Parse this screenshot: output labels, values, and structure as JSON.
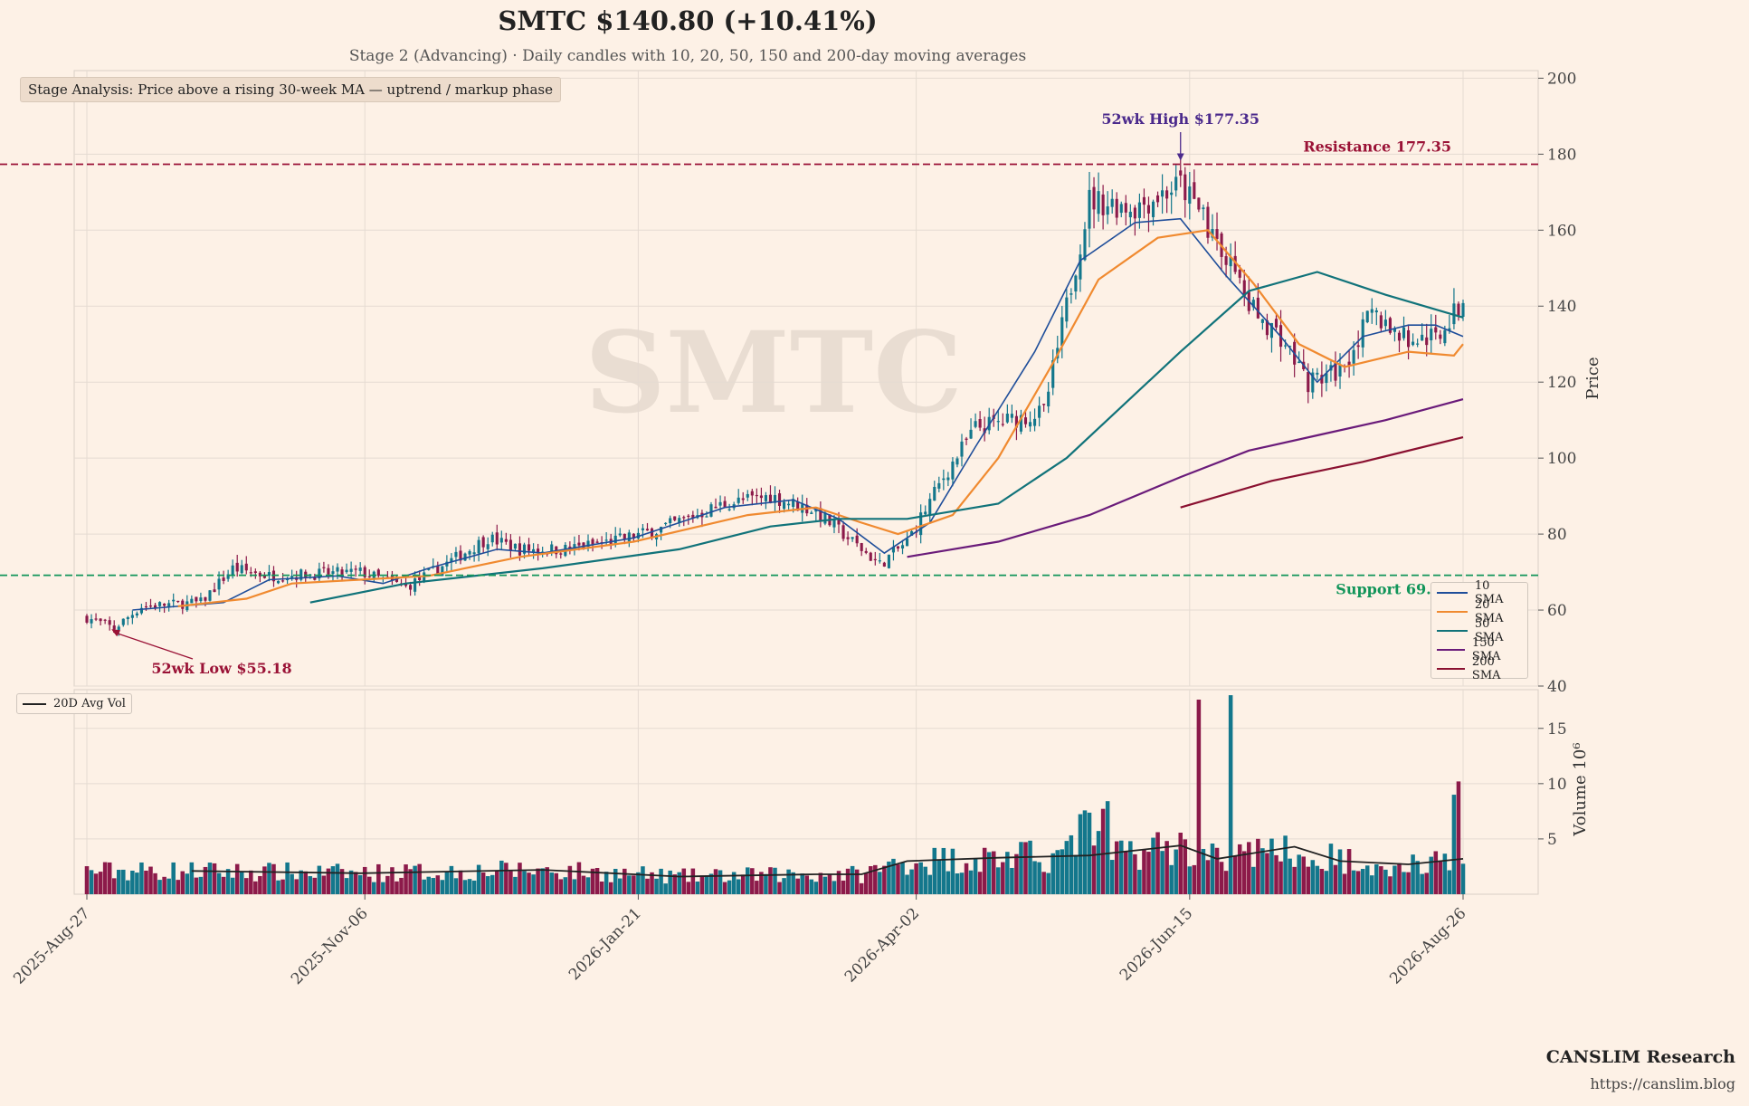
{
  "header": {
    "title": "SMTC  $140.80  (+10.41%)",
    "subtitle": "Stage 2 (Advancing)  ·  Daily candles with 10, 20, 50, 150 and 200-day moving averages"
  },
  "stage_note": "Stage Analysis: Price above a rising 30-week MA — uptrend / markup phase",
  "watermark": "SMTC",
  "brand": {
    "name": "CANSLIM Research",
    "url": "https://canslim.blog"
  },
  "colors": {
    "background": "#fdf1e6",
    "up": "#13778c",
    "down": "#8c1a4a",
    "sma10": "#1f4e9a",
    "sma20": "#f08a30",
    "sma50": "#11737a",
    "sma150": "#6a1b7a",
    "sma200": "#8a1030",
    "support": "#12955a",
    "resistance": "#9a1236",
    "high_annotation": "#4b2a8c",
    "low_annotation": "#9a1236"
  },
  "chart_data": {
    "type": "candlestick",
    "ticker": "SMTC",
    "price_axis": {
      "label": "Price",
      "ylim": [
        40,
        202
      ],
      "ticks": [
        40,
        60,
        80,
        100,
        120,
        140,
        160,
        180,
        200
      ]
    },
    "volume_axis": {
      "label": "Volume 10⁶",
      "ylim": [
        0,
        18.5
      ],
      "ticks": [
        5,
        10,
        15
      ]
    },
    "x_ticks": [
      "2025-Aug-27",
      "2025-Nov-06",
      "2026-Jan-21",
      "2026-Apr-02",
      "2026-Jun-15",
      "2026-Aug-26"
    ],
    "sessions": 251,
    "price_path": [
      [
        0,
        58
      ],
      [
        6,
        55.18
      ],
      [
        12,
        61
      ],
      [
        25,
        62
      ],
      [
        32,
        71
      ],
      [
        40,
        69
      ],
      [
        60,
        70
      ],
      [
        70,
        66
      ],
      [
        80,
        73
      ],
      [
        88,
        79
      ],
      [
        95,
        76
      ],
      [
        105,
        76
      ],
      [
        115,
        78
      ],
      [
        125,
        81
      ],
      [
        140,
        88
      ],
      [
        150,
        90
      ],
      [
        160,
        86
      ],
      [
        168,
        78
      ],
      [
        174,
        72
      ],
      [
        180,
        78
      ],
      [
        188,
        95
      ],
      [
        195,
        108
      ],
      [
        210,
        112
      ],
      [
        215,
        140
      ],
      [
        220,
        168
      ],
      [
        230,
        166
      ],
      [
        240,
        172
      ],
      [
        248,
        158
      ],
      [
        255,
        140
      ],
      [
        262,
        132
      ],
      [
        268,
        120
      ],
      [
        275,
        123
      ],
      [
        282,
        138
      ],
      [
        290,
        131
      ],
      [
        296,
        132
      ],
      [
        302,
        140.8
      ]
    ],
    "moving_averages": [
      {
        "name": "10 SMA",
        "color": "#1f4e9a",
        "points": [
          [
            10,
            60
          ],
          [
            30,
            62
          ],
          [
            40,
            68
          ],
          [
            55,
            69
          ],
          [
            65,
            67
          ],
          [
            75,
            71
          ],
          [
            90,
            76
          ],
          [
            100,
            75
          ],
          [
            120,
            79
          ],
          [
            140,
            87
          ],
          [
            155,
            89
          ],
          [
            165,
            84
          ],
          [
            175,
            75
          ],
          [
            185,
            83
          ],
          [
            195,
            103
          ],
          [
            208,
            128
          ],
          [
            218,
            152
          ],
          [
            230,
            162
          ],
          [
            240,
            163
          ],
          [
            250,
            148
          ],
          [
            262,
            132
          ],
          [
            270,
            120
          ],
          [
            280,
            132
          ],
          [
            290,
            135
          ],
          [
            296,
            135
          ],
          [
            302,
            132
          ]
        ]
      },
      {
        "name": "20 SMA",
        "color": "#f08a30",
        "points": [
          [
            20,
            61
          ],
          [
            35,
            63
          ],
          [
            45,
            67
          ],
          [
            60,
            68
          ],
          [
            75,
            69
          ],
          [
            95,
            74
          ],
          [
            120,
            78
          ],
          [
            145,
            85
          ],
          [
            160,
            87
          ],
          [
            170,
            83
          ],
          [
            178,
            80
          ],
          [
            190,
            85
          ],
          [
            200,
            100
          ],
          [
            212,
            125
          ],
          [
            222,
            147
          ],
          [
            235,
            158
          ],
          [
            246,
            160
          ],
          [
            256,
            146
          ],
          [
            266,
            130
          ],
          [
            276,
            124
          ],
          [
            290,
            128
          ],
          [
            300,
            127
          ],
          [
            302,
            130
          ]
        ]
      },
      {
        "name": "50 SMA",
        "color": "#11737a",
        "points": [
          [
            49,
            62
          ],
          [
            70,
            67
          ],
          [
            100,
            71
          ],
          [
            130,
            76
          ],
          [
            150,
            82
          ],
          [
            165,
            84
          ],
          [
            180,
            84
          ],
          [
            200,
            88
          ],
          [
            215,
            100
          ],
          [
            240,
            128
          ],
          [
            255,
            144
          ],
          [
            270,
            149
          ],
          [
            285,
            143
          ],
          [
            302,
            137
          ]
        ]
      },
      {
        "name": "150 SMA",
        "color": "#6a1b7a",
        "points": [
          [
            180,
            74
          ],
          [
            200,
            78
          ],
          [
            220,
            85
          ],
          [
            240,
            95
          ],
          [
            255,
            102
          ],
          [
            270,
            106
          ],
          [
            285,
            110
          ],
          [
            302,
            115.5
          ]
        ]
      },
      {
        "name": "200 SMA",
        "color": "#8a1030",
        "points": [
          [
            240,
            87
          ],
          [
            260,
            94
          ],
          [
            280,
            99
          ],
          [
            302,
            105.5
          ]
        ]
      }
    ],
    "volume_avg": {
      "name": "20D Avg Vol",
      "points": [
        [
          23,
          2.1
        ],
        [
          60,
          1.9
        ],
        [
          100,
          2.2
        ],
        [
          130,
          1.6
        ],
        [
          160,
          1.8
        ],
        [
          170,
          1.8
        ],
        [
          180,
          3.0
        ],
        [
          200,
          3.3
        ],
        [
          220,
          3.5
        ],
        [
          240,
          4.4
        ],
        [
          248,
          3.2
        ],
        [
          265,
          4.3
        ],
        [
          275,
          3.0
        ],
        [
          290,
          2.7
        ],
        [
          302,
          3.2
        ]
      ]
    },
    "volume_spikes": [
      [
        244,
        17.6
      ],
      [
        251,
        18.0
      ],
      [
        300,
        9.0
      ],
      [
        301,
        10.2
      ]
    ],
    "support": {
      "value": 69.16,
      "label": "Support 69.16"
    },
    "resistance": {
      "value": 177.35,
      "label": "Resistance 177.35"
    },
    "high_52wk": {
      "value": 177.35,
      "label": "52wk High $177.35",
      "session": 240
    },
    "low_52wk": {
      "value": 55.18,
      "label": "52wk Low $55.18",
      "session": 5
    },
    "legend": [
      "10 SMA",
      "20 SMA",
      "50 SMA",
      "150 SMA",
      "200 SMA"
    ]
  }
}
